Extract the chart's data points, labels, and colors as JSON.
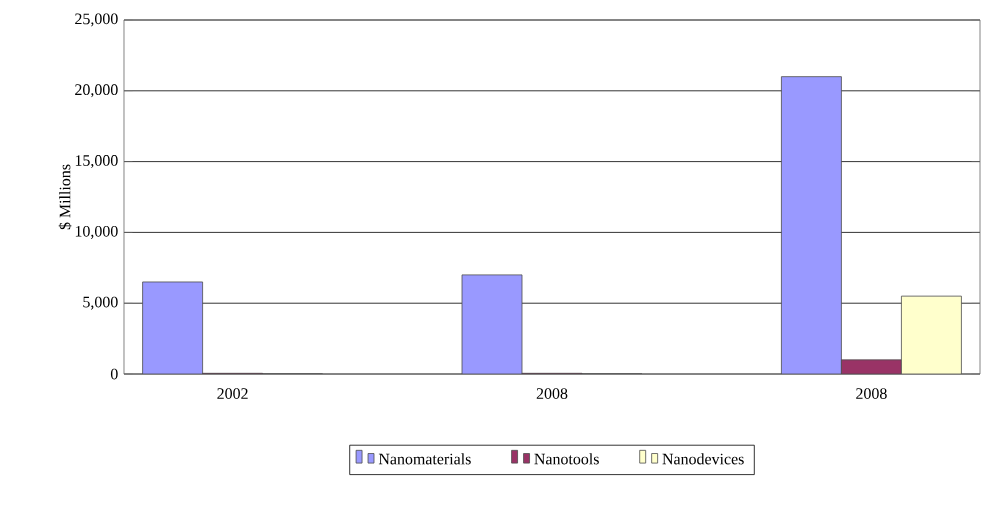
{
  "chart_data": {
    "type": "bar",
    "ylabel": "$ Millions",
    "categories": [
      "2002",
      "2008",
      "2008"
    ],
    "series": [
      {
        "name": "Nanomaterials",
        "color": "#9999ff",
        "values": [
          6500,
          7000,
          21000
        ]
      },
      {
        "name": "Nanotools",
        "color": "#993366",
        "values": [
          50,
          50,
          1000
        ]
      },
      {
        "name": "Nanodevices",
        "color": "#ffffcc",
        "values": [
          0,
          0,
          5500
        ]
      }
    ],
    "ylim": [
      0,
      25000
    ],
    "yticks": [
      {
        "value": 0,
        "label": "0"
      },
      {
        "value": 5000,
        "label": "5,000"
      },
      {
        "value": 10000,
        "label": "10,000"
      },
      {
        "value": 15000,
        "label": "15,000"
      },
      {
        "value": 20000,
        "label": "20,000"
      },
      {
        "value": 25000,
        "label": "25,000"
      }
    ],
    "grid": "y",
    "legend": "bottom"
  }
}
